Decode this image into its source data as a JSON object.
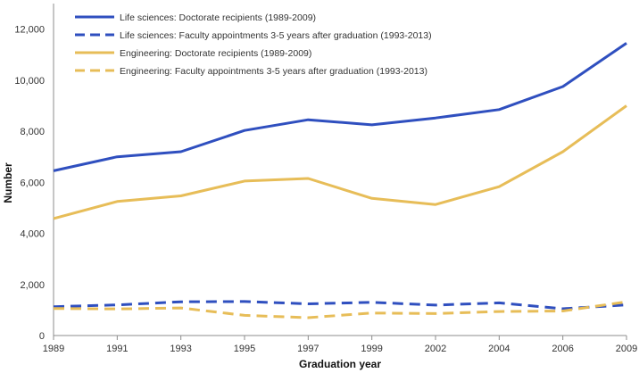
{
  "chart_data": {
    "type": "line",
    "title": "",
    "xlabel": "Graduation year",
    "ylabel": "Number",
    "ylim": [
      0,
      13000
    ],
    "yticks": [
      0,
      2000,
      4000,
      6000,
      8000,
      10000,
      12000
    ],
    "ytick_labels": [
      "0",
      "2,000",
      "4,000",
      "6,000",
      "8,000",
      "10,000",
      "12,000"
    ],
    "categories": [
      "1989",
      "1991",
      "1993",
      "1995",
      "1997",
      "1999",
      "2002",
      "2004",
      "2006",
      "2009"
    ],
    "grid": false,
    "legend_position": "top-left",
    "series": [
      {
        "name": "Life sciences: Doctorate recipients (1989-2009)",
        "color": "#2f4fbf",
        "dash": "solid",
        "values": [
          6450,
          7000,
          7200,
          8030,
          8450,
          8250,
          8520,
          8850,
          9750,
          11450
        ]
      },
      {
        "name": "Life sciences: Faculty appointments 3-5 years after graduation (1993-2013)",
        "color": "#2f4fbf",
        "dash": "dashed",
        "values": [
          1130,
          1200,
          1320,
          1330,
          1240,
          1300,
          1190,
          1280,
          1050,
          1200
        ]
      },
      {
        "name": "Engineering: Doctorate recipients (1989-2009)",
        "color": "#e7bd58",
        "dash": "solid",
        "values": [
          4580,
          5250,
          5470,
          6050,
          6150,
          5370,
          5130,
          5830,
          7200,
          9000
        ]
      },
      {
        "name": "Engineering: Faculty appointments 3-5 years after graduation (1993-2013)",
        "color": "#e7bd58",
        "dash": "dashed",
        "values": [
          1060,
          1040,
          1080,
          790,
          700,
          880,
          860,
          940,
          960,
          1320
        ]
      }
    ]
  }
}
